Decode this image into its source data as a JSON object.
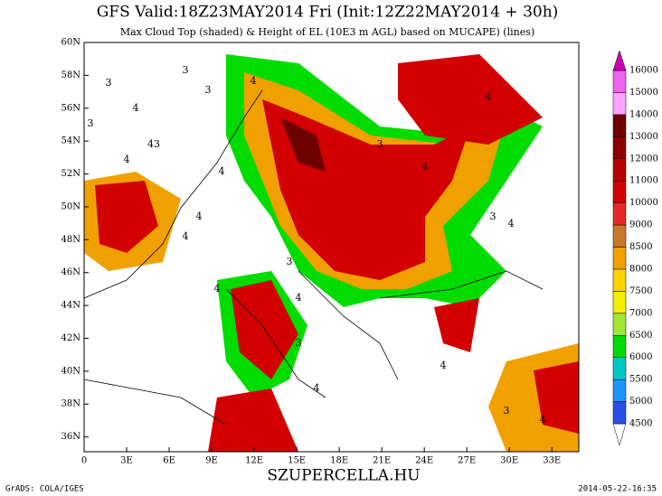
{
  "header": {
    "title": "GFS Valid:18Z23MAY2014 Fri (Init:12Z22MAY2014 + 30h)",
    "subtitle": "Max Cloud Top (shaded) & Height of EL (10E3 m AGL) based on MUCAPE) (lines)"
  },
  "map": {
    "xlim": [
      0,
      34.9
    ],
    "ylim": [
      35.1,
      60
    ],
    "xticks": [
      0,
      {
        "value": 3,
        "label": "3E"
      },
      {
        "value": 6,
        "label": "6E"
      },
      {
        "value": 9,
        "label": "9E"
      },
      {
        "value": 12,
        "label": "12E"
      },
      {
        "value": 15,
        "label": "15E"
      },
      {
        "value": 18,
        "label": "18E"
      },
      {
        "value": 21,
        "label": "21E"
      },
      {
        "value": 24,
        "label": "24E"
      },
      {
        "value": 27,
        "label": "27E"
      },
      {
        "value": 30,
        "label": "30E"
      },
      {
        "value": 33,
        "label": "33E"
      }
    ],
    "yticks": [
      {
        "value": 36,
        "label": "36N"
      },
      {
        "value": 38,
        "label": "38N"
      },
      {
        "value": 40,
        "label": "40N"
      },
      {
        "value": 42,
        "label": "42N"
      },
      {
        "value": 44,
        "label": "44N"
      },
      {
        "value": 46,
        "label": "46N"
      },
      {
        "value": 48,
        "label": "48N"
      },
      {
        "value": 50,
        "label": "50N"
      },
      {
        "value": 52,
        "label": "52N"
      },
      {
        "value": 54,
        "label": "54N"
      },
      {
        "value": 56,
        "label": "56N"
      },
      {
        "value": 58,
        "label": "58N"
      },
      {
        "value": 60,
        "label": "60N"
      }
    ],
    "contour_labels": [
      "3",
      "4",
      "3",
      "43",
      "4",
      "3",
      "3",
      "4",
      "4",
      "4",
      "3",
      "4",
      "4",
      "3",
      "4",
      "3",
      "4",
      "4",
      "3",
      "4",
      "4",
      "3",
      "4",
      "4"
    ]
  },
  "colorbar": {
    "levels": [
      4500,
      5000,
      5500,
      6000,
      6500,
      7000,
      7500,
      8000,
      8500,
      9000,
      10000,
      11000,
      12000,
      13000,
      14000,
      15000,
      16000
    ],
    "colors": [
      "#ffffff",
      "#2850e6",
      "#1e96ff",
      "#00c8c8",
      "#00dc00",
      "#a0e632",
      "#f0f000",
      "#ffd200",
      "#f0a000",
      "#c87828",
      "#e62828",
      "#d20000",
      "#b40000",
      "#8c0000",
      "#6e0000",
      "#ffa0ff",
      "#f064f0",
      "#c800b4"
    ]
  },
  "footer": {
    "left": "GrADS: COLA/IGES",
    "center": "SZUPERCELLA.HU",
    "right": "2014-05-22-16:35"
  }
}
